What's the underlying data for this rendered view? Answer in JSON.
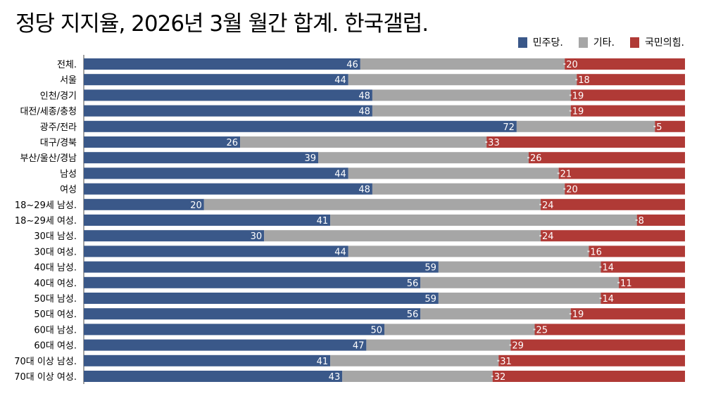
{
  "title": "정당 지지율, 2026년 3월 월간 합계. 한국갤럽.",
  "chart_data": {
    "type": "bar",
    "stacked": true,
    "orientation": "horizontal",
    "title": "정당 지지율, 2026년 3월 월간 합계. 한국갤럽.",
    "legend_position": "top-right",
    "xlim": [
      0,
      100
    ],
    "categories": [
      "전체.",
      "서울",
      "인천/경기",
      "대전/세종/충청",
      "광주/전라",
      "대구/경북",
      "부산/울산/경남",
      "남성",
      "여성",
      "18~29세 남성.",
      "18~29세 여성.",
      "30대 남성.",
      "30대 여성.",
      "40대 남성.",
      "40대 여성.",
      "50대 남성.",
      "50대 여성.",
      "60대 남성.",
      "60대 여성.",
      "70대 이상 남성.",
      "70대 이상 여성."
    ],
    "series": [
      {
        "name": "민주당.",
        "color": "#3a5889",
        "values": [
          46,
          44,
          48,
          48,
          72,
          26,
          39,
          44,
          48,
          20,
          41,
          30,
          44,
          59,
          56,
          59,
          56,
          50,
          47,
          41,
          43
        ]
      },
      {
        "name": "기타.",
        "color": "#a6a6a6",
        "values": [
          34,
          38,
          33,
          33,
          23,
          41,
          35,
          35,
          32,
          56,
          51,
          46,
          40,
          27,
          33,
          27,
          25,
          25,
          24,
          28,
          25
        ]
      },
      {
        "name": "국민의힘.",
        "color": "#b03a36",
        "values": [
          20,
          18,
          19,
          19,
          5,
          33,
          26,
          21,
          20,
          24,
          8,
          24,
          16,
          14,
          11,
          14,
          19,
          25,
          29,
          31,
          32
        ]
      }
    ]
  }
}
